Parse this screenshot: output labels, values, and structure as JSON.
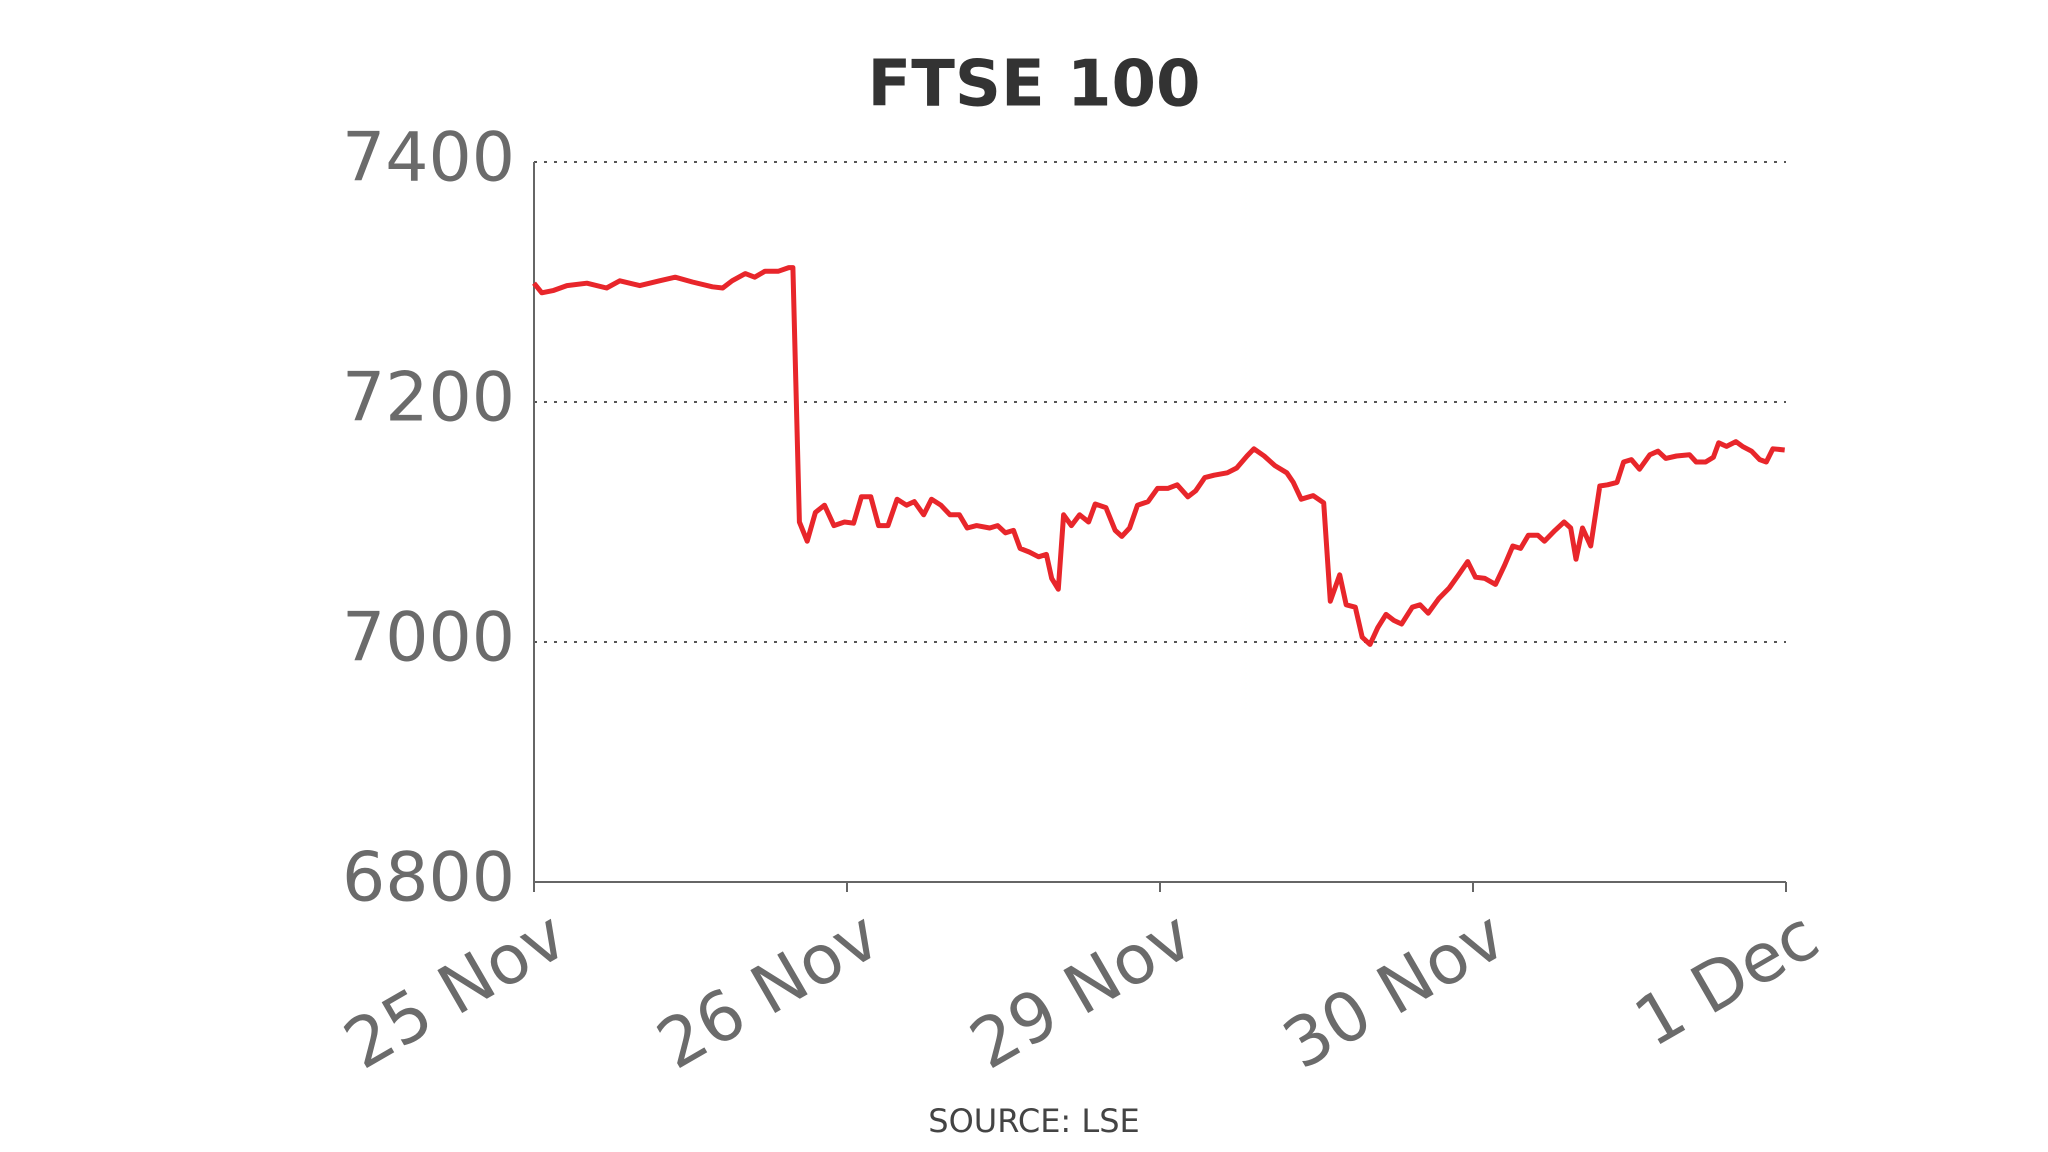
{
  "chart_data": {
    "type": "line",
    "title": "FTSE 100",
    "source": "SOURCE: LSE",
    "x": [
      0,
      0.025,
      0.063,
      0.105,
      0.169,
      0.232,
      0.274,
      0.338,
      0.401,
      0.451,
      0.506,
      0.57,
      0.603,
      0.633,
      0.675,
      0.705,
      0.738,
      0.781,
      0.814,
      0.827,
      0.848,
      0.873,
      0.899,
      0.928,
      0.958,
      0.992,
      1.021,
      1.046,
      1.076,
      1.101,
      1.131,
      1.16,
      1.19,
      1.215,
      1.245,
      1.27,
      1.3,
      1.329,
      1.359,
      1.384,
      1.414,
      1.456,
      1.481,
      1.506,
      1.532,
      1.553,
      1.582,
      1.612,
      1.637,
      1.654,
      1.675,
      1.692,
      1.717,
      1.743,
      1.772,
      1.793,
      1.827,
      1.857,
      1.878,
      1.903,
      1.928,
      1.962,
      1.992,
      2.025,
      2.055,
      2.089,
      2.114,
      2.143,
      2.173,
      2.215,
      2.245,
      2.278,
      2.3,
      2.333,
      2.367,
      2.405,
      2.426,
      2.451,
      2.489,
      2.523,
      2.544,
      2.574,
      2.595,
      2.624,
      2.646,
      2.671,
      2.696,
      2.722,
      2.747,
      2.772,
      2.806,
      2.831,
      2.857,
      2.89,
      2.924,
      2.954,
      2.983,
      3.008,
      3.038,
      3.072,
      3.101,
      3.127,
      3.152,
      3.177,
      3.207,
      3.228,
      3.262,
      3.291,
      3.312,
      3.329,
      3.35,
      3.376,
      3.405,
      3.43,
      3.46,
      3.481,
      3.506,
      3.532,
      3.565,
      3.591,
      3.616,
      3.65,
      3.692,
      3.713,
      3.743,
      3.768,
      3.785,
      3.81,
      3.84,
      3.861,
      3.89,
      3.916,
      3.937,
      3.958,
      3.996
    ],
    "values": [
      7299,
      7291,
      7293,
      7297,
      7299,
      7295,
      7301,
      7297,
      7301,
      7304,
      7300,
      7296,
      7295,
      7301,
      7307,
      7304,
      7309,
      7309,
      7312,
      7312,
      7100,
      7084,
      7108,
      7114,
      7097,
      7100,
      7099,
      7121,
      7121,
      7097,
      7097,
      7119,
      7114,
      7117,
      7106,
      7119,
      7114,
      7106,
      7106,
      7095,
      7097,
      7095,
      7097,
      7091,
      7093,
      7078,
      7075,
      7071,
      7073,
      7053,
      7044,
      7106,
      7097,
      7106,
      7100,
      7115,
      7112,
      7093,
      7088,
      7095,
      7114,
      7117,
      7128,
      7128,
      7131,
      7121,
      7126,
      7137,
      7139,
      7141,
      7145,
      7155,
      7161,
      7155,
      7147,
      7141,
      7133,
      7119,
      7122,
      7116,
      7034,
      7056,
      7031,
      7029,
      7004,
      6998,
      7012,
      7023,
      7018,
      7015,
      7029,
      7031,
      7024,
      7036,
      7045,
      7056,
      7067,
      7054,
      7053,
      7048,
      7064,
      7080,
      7078,
      7089,
      7089,
      7084,
      7093,
      7100,
      7095,
      7069,
      7095,
      7080,
      7130,
      7131,
      7133,
      7150,
      7152,
      7144,
      7156,
      7159,
      7153,
      7155,
      7156,
      7150,
      7150,
      7154,
      7166,
      7163,
      7167,
      7163,
      7159,
      7152,
      7150,
      7161,
      7160
    ],
    "color": "#e8262b",
    "xlim": [
      0,
      4
    ],
    "xticks": [
      {
        "value": 0,
        "label": "25 Nov"
      },
      {
        "value": 1,
        "label": "26 Nov"
      },
      {
        "value": 2,
        "label": "29 Nov"
      },
      {
        "value": 3,
        "label": "30 Nov"
      },
      {
        "value": 4,
        "label": "1 Dec"
      }
    ],
    "ylim": [
      6800,
      7400
    ],
    "yticks": [
      6800,
      7000,
      7200,
      7400
    ],
    "grid": true
  }
}
